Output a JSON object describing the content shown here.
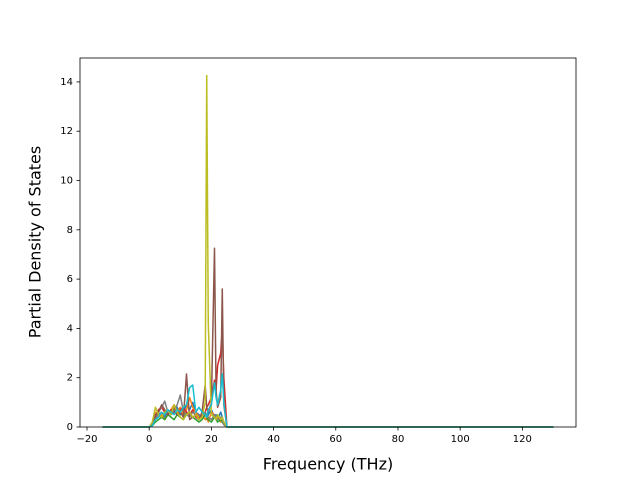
{
  "chart_data": {
    "type": "line",
    "xlabel": "Frequency (THz)",
    "ylabel": "Partial Density of States",
    "x": [
      -15,
      0,
      1,
      2,
      3,
      4,
      5,
      6,
      7,
      8,
      9,
      10,
      11,
      12,
      13,
      14,
      15,
      16,
      17,
      18,
      18.5,
      19,
      20,
      21,
      21.5,
      22,
      23,
      23.5,
      24,
      25,
      130
    ],
    "series": [
      {
        "color": "#1f77b4",
        "values": [
          0,
          0,
          0.1,
          0.3,
          0.5,
          0.6,
          0.4,
          0.7,
          0.5,
          0.6,
          0.8,
          0.5,
          0.6,
          0.9,
          0.7,
          1.0,
          0.6,
          0.5,
          0.4,
          0.6,
          0.3,
          0.5,
          0.7,
          0.4,
          0.5,
          0.3,
          0.6,
          0.4,
          0.2,
          0,
          0
        ]
      },
      {
        "color": "#ff7f0e",
        "values": [
          0,
          0,
          0.1,
          0.6,
          0.4,
          0.5,
          0.3,
          0.5,
          0.7,
          0.9,
          0.6,
          0.8,
          0.5,
          0.7,
          1.2,
          0.8,
          0.6,
          0.4,
          0.5,
          0.3,
          0.4,
          0.2,
          0.6,
          0.5,
          0.3,
          0.4,
          0.2,
          0.3,
          0.1,
          0,
          0
        ]
      },
      {
        "color": "#2ca02c",
        "values": [
          0,
          0,
          0.05,
          0.2,
          0.3,
          0.4,
          0.3,
          0.5,
          0.4,
          0.3,
          0.5,
          0.4,
          0.3,
          0.6,
          0.5,
          0.4,
          0.3,
          0.2,
          0.3,
          0.5,
          0.4,
          0.3,
          0.2,
          0.4,
          0.3,
          0.2,
          0.3,
          0.2,
          0.1,
          0,
          0
        ]
      },
      {
        "color": "#d62728",
        "values": [
          0,
          0,
          0.1,
          0.4,
          0.7,
          0.8,
          0.6,
          0.5,
          0.7,
          0.6,
          0.5,
          0.7,
          0.8,
          0.6,
          0.5,
          0.7,
          0.4,
          0.3,
          0.5,
          0.6,
          0.8,
          0.9,
          1.2,
          1.9,
          1.5,
          2.5,
          3.0,
          4.0,
          2.0,
          0,
          0
        ]
      },
      {
        "color": "#7f7f7f",
        "values": [
          0,
          0,
          0.1,
          0.3,
          0.6,
          0.8,
          1.05,
          0.6,
          0.5,
          0.7,
          0.9,
          1.3,
          0.6,
          0.5,
          0.4,
          0.6,
          0.5,
          0.3,
          0.4,
          0.6,
          0.5,
          0.4,
          0.3,
          0.5,
          0.4,
          0.3,
          0.4,
          0.3,
          0.1,
          0,
          0
        ]
      },
      {
        "color": "#8c564b",
        "values": [
          0,
          0,
          0.1,
          0.5,
          0.6,
          0.9,
          0.7,
          0.5,
          0.6,
          0.8,
          0.5,
          0.6,
          0.4,
          2.15,
          0.3,
          0.4,
          0.5,
          0.3,
          0.6,
          1.7,
          0.8,
          0.6,
          1.0,
          7.25,
          1.5,
          0.8,
          1.2,
          5.6,
          0.9,
          0,
          0
        ]
      },
      {
        "color": "#bcbd22",
        "values": [
          0,
          0,
          0.2,
          0.8,
          0.5,
          0.4,
          0.6,
          0.7,
          0.5,
          0.9,
          0.6,
          0.4,
          0.3,
          0.5,
          0.6,
          0.4,
          0.5,
          0.3,
          0.4,
          1.0,
          14.26,
          4.2,
          0.5,
          0.4,
          0.3,
          0.5,
          0.3,
          0.4,
          0.2,
          0,
          0
        ]
      },
      {
        "color": "#17becf",
        "values": [
          0,
          0,
          0.05,
          0.3,
          0.4,
          0.6,
          0.5,
          0.7,
          0.6,
          0.5,
          0.7,
          0.6,
          0.8,
          0.9,
          1.6,
          1.7,
          0.6,
          0.8,
          0.6,
          0.5,
          0.4,
          0.7,
          0.9,
          1.8,
          1.2,
          0.9,
          1.5,
          2.15,
          1.0,
          0,
          0
        ]
      }
    ],
    "xlim": [
      -22.25,
      137.25
    ],
    "xticks": [
      {
        "value": -20,
        "label": "−20"
      },
      0,
      20,
      40,
      60,
      80,
      100,
      120
    ],
    "ylim": [
      0,
      14.97
    ],
    "yticks": [
      0,
      2,
      4,
      6,
      8,
      10,
      12,
      14
    ],
    "grid": false
  }
}
